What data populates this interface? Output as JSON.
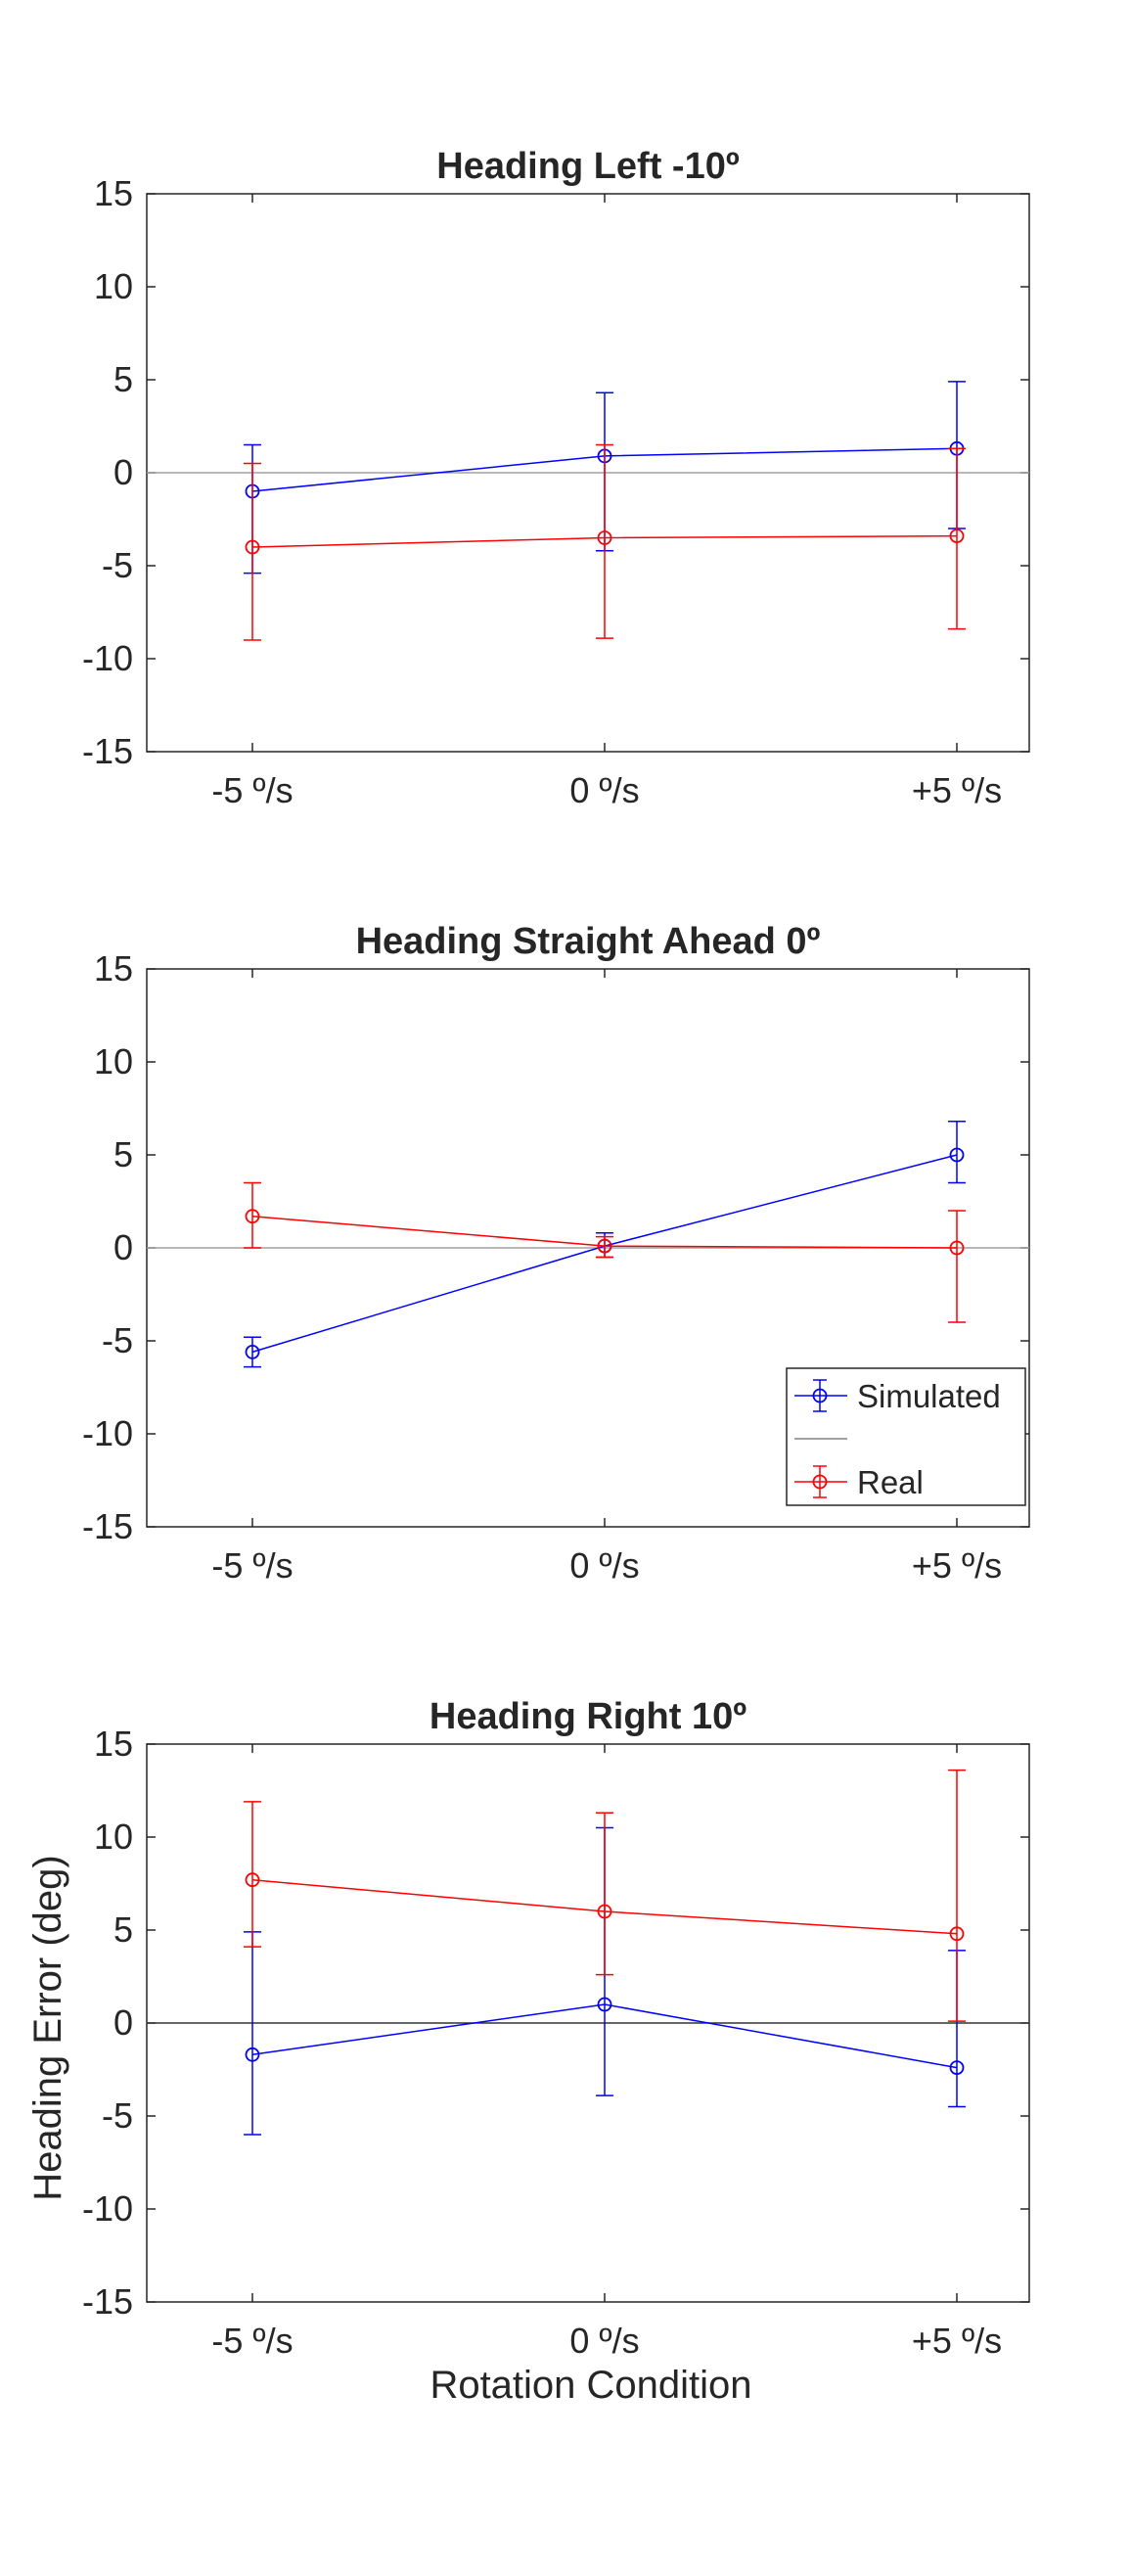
{
  "figure": {
    "xlabel": "Rotation Condition",
    "ylabel": "Heading Error (deg)"
  },
  "chart_data": [
    {
      "type": "line",
      "title": "Heading Left -10º",
      "categories": [
        "-5 º/s",
        "0 º/s",
        "+5 º/s"
      ],
      "ylim": [
        -15,
        15
      ],
      "yticks": [
        15,
        10,
        5,
        0,
        -5,
        -10,
        -15
      ],
      "series": [
        {
          "name": "Simulated",
          "color": "#0000ff",
          "values": [
            -1.0,
            0.9,
            1.3
          ],
          "err_low": [
            -5.4,
            -4.2,
            -3.0
          ],
          "err_high": [
            1.5,
            4.3,
            4.9
          ]
        },
        {
          "name": "Real",
          "color": "#ff0000",
          "values": [
            -4.0,
            -3.5,
            -3.4
          ],
          "err_low": [
            -9.0,
            -8.9,
            -8.4
          ],
          "err_high": [
            0.5,
            1.5,
            1.3
          ]
        }
      ],
      "zero_line_color": "#a0a0a0",
      "legend": null
    },
    {
      "type": "line",
      "title": "Heading Straight Ahead 0º",
      "categories": [
        "-5 º/s",
        "0 º/s",
        "+5 º/s"
      ],
      "ylim": [
        -15,
        15
      ],
      "yticks": [
        15,
        10,
        5,
        0,
        -5,
        -10,
        -15
      ],
      "series": [
        {
          "name": "Simulated",
          "color": "#0000ff",
          "values": [
            -5.6,
            0.1,
            5.0
          ],
          "err_low": [
            -6.4,
            -0.5,
            3.5
          ],
          "err_high": [
            -4.8,
            0.8,
            6.8
          ]
        },
        {
          "name": "Real",
          "color": "#ff0000",
          "values": [
            1.7,
            0.1,
            0.0
          ],
          "err_low": [
            0.0,
            -0.5,
            -4.0
          ],
          "err_high": [
            3.5,
            0.6,
            2.0
          ]
        }
      ],
      "zero_line_color": "#a0a0a0",
      "legend": {
        "placement": "bottom-right",
        "entries": [
          "Simulated",
          "Real"
        ]
      }
    },
    {
      "type": "line",
      "title": "Heading Right 10º",
      "categories": [
        "-5 º/s",
        "0 º/s",
        "+5 º/s"
      ],
      "ylim": [
        -15,
        15
      ],
      "yticks": [
        15,
        10,
        5,
        0,
        -5,
        -10,
        -15
      ],
      "series": [
        {
          "name": "Simulated",
          "color": "#0000ff",
          "values": [
            -1.7,
            1.0,
            -2.4
          ],
          "err_low": [
            -6.0,
            -3.9,
            -4.5
          ],
          "err_high": [
            4.9,
            10.5,
            3.9
          ]
        },
        {
          "name": "Real",
          "color": "#ff0000",
          "values": [
            7.7,
            6.0,
            4.8
          ],
          "err_low": [
            4.1,
            2.6,
            0.1
          ],
          "err_high": [
            11.9,
            11.3,
            13.6
          ]
        }
      ],
      "zero_line_color": "#333333",
      "legend": null
    }
  ]
}
